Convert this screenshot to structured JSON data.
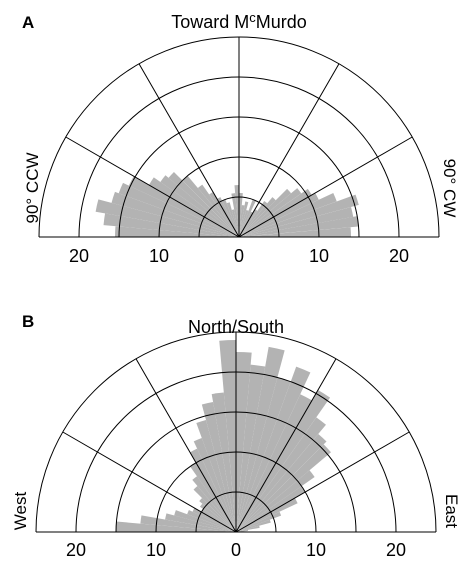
{
  "chart_data": [
    {
      "panel": "A",
      "type": "polar-histogram",
      "title": "Toward McMurdo",
      "title_sup": "c",
      "left_label": "90° CCW",
      "right_label": "90° CW",
      "r_ticks": [
        20,
        10,
        0,
        10,
        20
      ],
      "rlim": [
        0,
        25
      ],
      "rings": [
        5,
        10,
        15,
        20,
        25
      ],
      "angle_range_deg": [
        -90,
        90
      ],
      "spoke_step_deg": 30,
      "bins": [
        {
          "a0": -90,
          "a1": -85,
          "r": 15.5
        },
        {
          "a0": -85,
          "a1": -80,
          "r": 17.0
        },
        {
          "a0": -80,
          "a1": -75,
          "r": 18.2
        },
        {
          "a0": -75,
          "a1": -70,
          "r": 16.5
        },
        {
          "a0": -70,
          "a1": -65,
          "r": 16.0
        },
        {
          "a0": -65,
          "a1": -60,
          "r": 15.2
        },
        {
          "a0": -60,
          "a1": -55,
          "r": 13.0
        },
        {
          "a0": -55,
          "a1": -50,
          "r": 12.0
        },
        {
          "a0": -50,
          "a1": -45,
          "r": 11.5
        },
        {
          "a0": -45,
          "a1": -40,
          "r": 10.0
        },
        {
          "a0": -40,
          "a1": -35,
          "r": 8.0
        },
        {
          "a0": -35,
          "a1": -30,
          "r": 6.5
        },
        {
          "a0": -30,
          "a1": -25,
          "r": 5.5
        },
        {
          "a0": -25,
          "a1": -20,
          "r": 5.0
        },
        {
          "a0": -20,
          "a1": -15,
          "r": 4.5
        },
        {
          "a0": -15,
          "a1": -10,
          "r": 3.5
        },
        {
          "a0": -10,
          "a1": -5,
          "r": 5.5
        },
        {
          "a0": -5,
          "a1": 0,
          "r": 6.5
        },
        {
          "a0": 0,
          "a1": 5,
          "r": 5.5
        },
        {
          "a0": 5,
          "a1": 10,
          "r": 4.0
        },
        {
          "a0": 10,
          "a1": 15,
          "r": 4.5
        },
        {
          "a0": 15,
          "a1": 20,
          "r": 3.5
        },
        {
          "a0": 20,
          "a1": 25,
          "r": 5.0
        },
        {
          "a0": 25,
          "a1": 30,
          "r": 3.5
        },
        {
          "a0": 30,
          "a1": 35,
          "r": 4.0
        },
        {
          "a0": 35,
          "a1": 40,
          "r": 5.5
        },
        {
          "a0": 40,
          "a1": 45,
          "r": 6.5
        },
        {
          "a0": 45,
          "a1": 50,
          "r": 8.5
        },
        {
          "a0": 50,
          "a1": 55,
          "r": 9.5
        },
        {
          "a0": 55,
          "a1": 60,
          "r": 10.5
        },
        {
          "a0": 60,
          "a1": 65,
          "r": 11.0
        },
        {
          "a0": 65,
          "a1": 70,
          "r": 13.0
        },
        {
          "a0": 70,
          "a1": 75,
          "r": 15.5
        },
        {
          "a0": 75,
          "a1": 80,
          "r": 14.5
        },
        {
          "a0": 80,
          "a1": 85,
          "r": 15.0
        },
        {
          "a0": 85,
          "a1": 90,
          "r": 14.0
        }
      ]
    },
    {
      "panel": "B",
      "type": "polar-histogram",
      "title": "North/South",
      "left_label": "West",
      "right_label": "East",
      "r_ticks": [
        20,
        10,
        0,
        10,
        20
      ],
      "rlim": [
        0,
        25
      ],
      "rings": [
        5,
        10,
        15,
        20,
        25
      ],
      "angle_range_deg": [
        -90,
        90
      ],
      "spoke_step_deg": 30,
      "bins": [
        {
          "a0": -90,
          "a1": -85,
          "r": 15.0
        },
        {
          "a0": -85,
          "a1": -80,
          "r": 12.0
        },
        {
          "a0": -80,
          "a1": -75,
          "r": 9.0
        },
        {
          "a0": -75,
          "a1": -70,
          "r": 8.0
        },
        {
          "a0": -70,
          "a1": -65,
          "r": 6.5
        },
        {
          "a0": -65,
          "a1": -60,
          "r": 6.0
        },
        {
          "a0": -60,
          "a1": -55,
          "r": 5.0
        },
        {
          "a0": -55,
          "a1": -50,
          "r": 5.5
        },
        {
          "a0": -50,
          "a1": -45,
          "r": 6.0
        },
        {
          "a0": -45,
          "a1": -40,
          "r": 7.5
        },
        {
          "a0": -40,
          "a1": -35,
          "r": 8.5
        },
        {
          "a0": -35,
          "a1": -30,
          "r": 10.0
        },
        {
          "a0": -30,
          "a1": -25,
          "r": 11.5
        },
        {
          "a0": -25,
          "a1": -20,
          "r": 12.5
        },
        {
          "a0": -20,
          "a1": -15,
          "r": 14.5
        },
        {
          "a0": -15,
          "a1": -10,
          "r": 16.5
        },
        {
          "a0": -10,
          "a1": -5,
          "r": 17.5
        },
        {
          "a0": -5,
          "a1": 0,
          "r": 24.0
        },
        {
          "a0": 0,
          "a1": 5,
          "r": 22.5
        },
        {
          "a0": 5,
          "a1": 10,
          "r": 21.0
        },
        {
          "a0": 10,
          "a1": 15,
          "r": 23.5
        },
        {
          "a0": 15,
          "a1": 20,
          "r": 20.0
        },
        {
          "a0": 20,
          "a1": 25,
          "r": 22.0
        },
        {
          "a0": 25,
          "a1": 30,
          "r": 19.0
        },
        {
          "a0": 30,
          "a1": 35,
          "r": 20.5
        },
        {
          "a0": 35,
          "a1": 40,
          "r": 17.5
        },
        {
          "a0": 40,
          "a1": 45,
          "r": 16.0
        },
        {
          "a0": 45,
          "a1": 50,
          "r": 15.5
        },
        {
          "a0": 50,
          "a1": 55,
          "r": 12.0
        },
        {
          "a0": 55,
          "a1": 60,
          "r": 10.0
        },
        {
          "a0": 60,
          "a1": 65,
          "r": 8.5
        },
        {
          "a0": 65,
          "a1": 70,
          "r": 6.0
        },
        {
          "a0": 70,
          "a1": 75,
          "r": 4.5
        },
        {
          "a0": 75,
          "a1": 80,
          "r": 3.0
        },
        {
          "a0": 80,
          "a1": 85,
          "r": 1.5
        },
        {
          "a0": 85,
          "a1": 90,
          "r": 1.0
        }
      ]
    }
  ]
}
